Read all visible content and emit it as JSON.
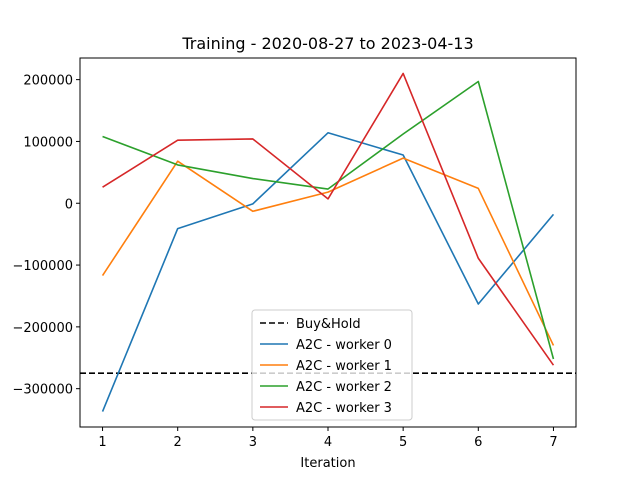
{
  "chart_data": {
    "type": "line",
    "title": "Training - 2020-08-27 to 2023-04-13",
    "xlabel": "Iteration",
    "ylabel": "",
    "x": [
      1,
      2,
      3,
      4,
      5,
      6,
      7
    ],
    "xlim": [
      0.7,
      7.3
    ],
    "ylim": [
      -362000,
      235000
    ],
    "x_ticks": [
      1,
      2,
      3,
      4,
      5,
      6,
      7
    ],
    "y_ticks": [
      -300000,
      -200000,
      -100000,
      0,
      100000,
      200000
    ],
    "y_tick_labels": [
      "−300000",
      "−200000",
      "−100000",
      "0",
      "100000",
      "200000"
    ],
    "x_tick_labels": [
      "1",
      "2",
      "3",
      "4",
      "5",
      "6",
      "7"
    ],
    "grid": false,
    "legend_position": "bottom-center",
    "reference_lines": [
      {
        "name": "Buy&Hold",
        "y": -275000,
        "color": "#000000",
        "style": "dashed"
      }
    ],
    "series": [
      {
        "name": "A2C - worker 0",
        "color": "#1f77b4",
        "values": [
          -337000,
          -41000,
          -1000,
          114000,
          78000,
          -163000,
          -18000
        ]
      },
      {
        "name": "A2C - worker 1",
        "color": "#ff7f0e",
        "values": [
          -117000,
          68000,
          -13000,
          18000,
          73000,
          24000,
          -230000
        ]
      },
      {
        "name": "A2C - worker 2",
        "color": "#2ca02c",
        "values": [
          108000,
          62000,
          40000,
          23000,
          112000,
          197000,
          -252000
        ]
      },
      {
        "name": "A2C - worker 3",
        "color": "#d62728",
        "values": [
          26000,
          102000,
          104000,
          7000,
          210000,
          -89000,
          -262000
        ]
      }
    ]
  }
}
